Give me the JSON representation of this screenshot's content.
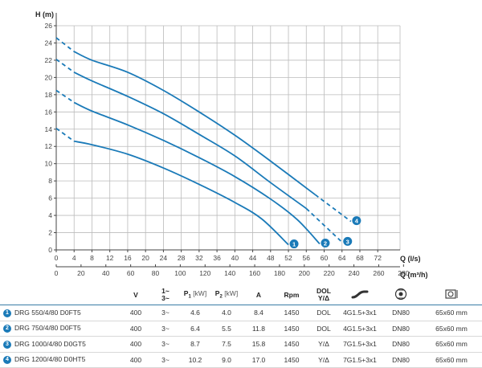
{
  "chart_data": {
    "type": "line",
    "ylabel": "H (m)",
    "xlabel": "Q (l/s)",
    "x2label": "Q (m³/h)",
    "xlim": [
      0,
      77
    ],
    "ylim": [
      0,
      26
    ],
    "x_ticks": [
      0,
      4,
      8,
      12,
      16,
      20,
      24,
      28,
      32,
      36,
      40,
      44,
      48,
      52,
      56,
      60,
      64,
      68,
      72
    ],
    "x2_ticks": [
      0,
      20,
      40,
      60,
      80,
      100,
      120,
      140,
      160,
      180,
      200,
      220,
      240,
      260,
      280
    ],
    "y_ticks": [
      0,
      2,
      4,
      6,
      8,
      10,
      12,
      14,
      16,
      18,
      20,
      22,
      24,
      26
    ],
    "grid": true,
    "series": [
      {
        "badge": "1",
        "color": "#1a7ab8",
        "dashed": [
          [
            0,
            14.1
          ],
          [
            4,
            12.6
          ]
        ],
        "solid": [
          [
            4,
            12.6
          ],
          [
            8,
            12.2
          ],
          [
            16,
            11.1
          ],
          [
            24,
            9.5
          ],
          [
            32,
            7.6
          ],
          [
            40,
            5.5
          ],
          [
            46,
            3.6
          ],
          [
            52,
            0.6
          ]
        ]
      },
      {
        "badge": "2",
        "color": "#1a7ab8",
        "dashed": [
          [
            0,
            18.5
          ],
          [
            4,
            17.1
          ]
        ],
        "solid": [
          [
            4,
            17.1
          ],
          [
            8,
            16.1
          ],
          [
            16,
            14.5
          ],
          [
            24,
            12.7
          ],
          [
            32,
            10.7
          ],
          [
            40,
            8.5
          ],
          [
            48,
            5.9
          ],
          [
            54,
            3.5
          ],
          [
            59,
            0.7
          ]
        ]
      },
      {
        "badge": "3",
        "color": "#1a7ab8",
        "dashed_end": [
          [
            56,
            4.8
          ],
          [
            64,
            0.9
          ]
        ],
        "dashed": [
          [
            0,
            22.1
          ],
          [
            4,
            20.6
          ]
        ],
        "solid": [
          [
            4,
            20.6
          ],
          [
            8,
            19.6
          ],
          [
            16,
            17.8
          ],
          [
            24,
            15.8
          ],
          [
            32,
            13.4
          ],
          [
            40,
            10.9
          ],
          [
            48,
            7.8
          ],
          [
            56,
            4.8
          ]
        ]
      },
      {
        "badge": "4",
        "color": "#1a7ab8",
        "dashed_end": [
          [
            58,
            6.4
          ],
          [
            66,
            3.3
          ]
        ],
        "dashed": [
          [
            0,
            24.6
          ],
          [
            4,
            23.0
          ]
        ],
        "solid": [
          [
            4,
            23.0
          ],
          [
            8,
            22.0
          ],
          [
            16,
            20.6
          ],
          [
            24,
            18.5
          ],
          [
            32,
            16.0
          ],
          [
            40,
            13.3
          ],
          [
            48,
            10.3
          ],
          [
            58,
            6.4
          ]
        ]
      }
    ]
  },
  "table": {
    "headers": {
      "v": "V",
      "phase_top": "1~",
      "phase_bottom": "3~",
      "p1": "P",
      "p1_sub": "1",
      "p1_unit": "[kW]",
      "p2": "P",
      "p2_sub": "2",
      "p2_unit": "[kW]",
      "a": "A",
      "rpm": "Rpm",
      "dol_top": "DOL",
      "dol_bottom": "Y/Δ"
    },
    "icons": {
      "cable": "cable-icon",
      "flange": "flange-icon",
      "dimensions": "dimensions-icon"
    },
    "rows": [
      {
        "badge": "1",
        "model": "DRG 550/4/80 D0FT5",
        "v": "400",
        "phase": "3~",
        "p1": "4.6",
        "p2": "4.0",
        "a": "8.4",
        "rpm": "1450",
        "start": "DOL",
        "cable": "4G1.5+3x1",
        "dn": "DN80",
        "dim": "65x60 mm"
      },
      {
        "badge": "2",
        "model": "DRG 750/4/80 D0FT5",
        "v": "400",
        "phase": "3~",
        "p1": "6.4",
        "p2": "5.5",
        "a": "11.8",
        "rpm": "1450",
        "start": "DOL",
        "cable": "4G1.5+3x1",
        "dn": "DN80",
        "dim": "65x60 mm"
      },
      {
        "badge": "3",
        "model": "DRG 1000/4/80 D0GT5",
        "v": "400",
        "phase": "3~",
        "p1": "8.7",
        "p2": "7.5",
        "a": "15.8",
        "rpm": "1450",
        "start": "Y/Δ",
        "cable": "7G1.5+3x1",
        "dn": "DN80",
        "dim": "65x60 mm"
      },
      {
        "badge": "4",
        "model": "DRG 1200/4/80 D0HT5",
        "v": "400",
        "phase": "3~",
        "p1": "10.2",
        "p2": "9.0",
        "a": "17.0",
        "rpm": "1450",
        "start": "Y/Δ",
        "cable": "7G1.5+3x1",
        "dn": "DN80",
        "dim": "65x60 mm"
      }
    ]
  }
}
